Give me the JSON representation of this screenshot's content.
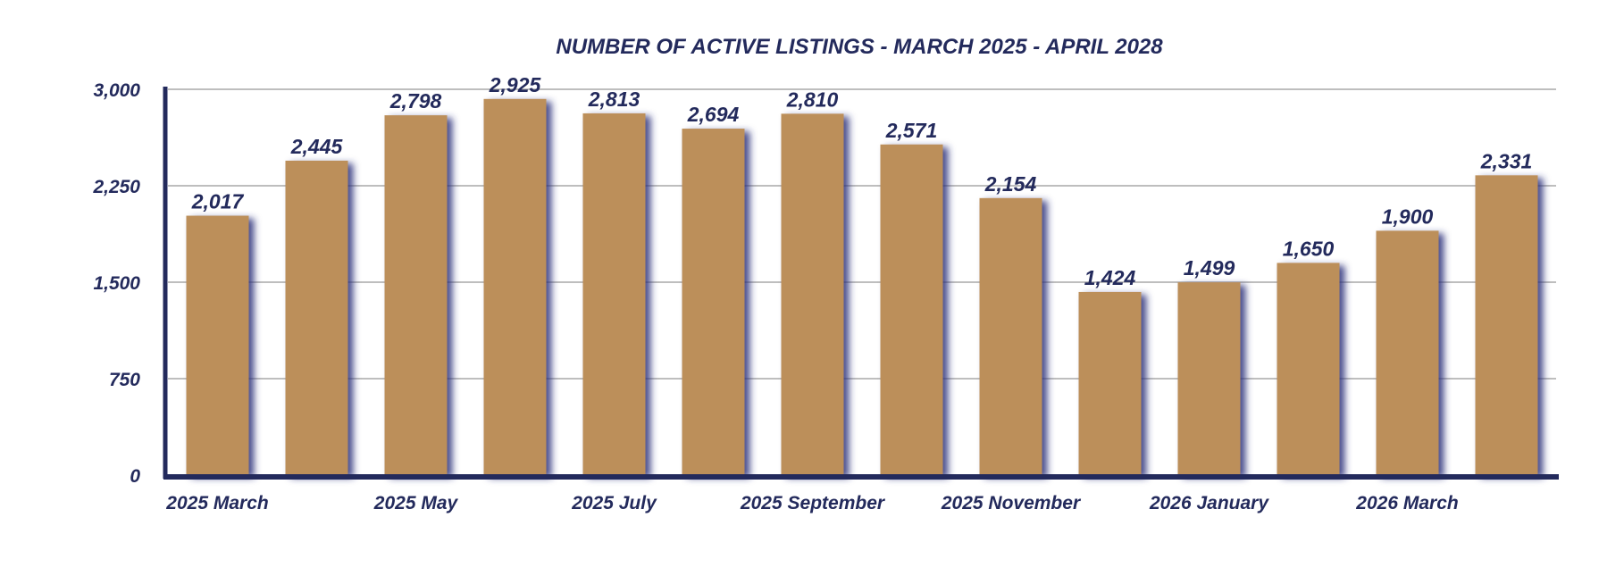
{
  "chart_data": {
    "type": "bar",
    "title": "NUMBER OF ACTIVE LISTINGS - MARCH 2025 - APRIL 2028",
    "xlabel": "",
    "ylabel": "",
    "categories": [
      "2025 March",
      "",
      "2025 May",
      "",
      "2025 July",
      "",
      "2025 September",
      "",
      "2025 November",
      "",
      "2026 January",
      "",
      "2026 March",
      ""
    ],
    "values": [
      2017,
      2445,
      2798,
      2925,
      2813,
      2694,
      2810,
      2571,
      2154,
      1424,
      1499,
      1650,
      1900,
      2331
    ],
    "value_labels": [
      "2,017",
      "2,445",
      "2,798",
      "2,925",
      "2,813",
      "2,694",
      "2,810",
      "2,571",
      "2,154",
      "1,424",
      "1,499",
      "1,650",
      "1,900",
      "2,331"
    ],
    "y_ticks": [
      0,
      750,
      1500,
      2250,
      3000
    ],
    "y_tick_labels": [
      "0",
      "750",
      "1,500",
      "2,250",
      "3,000"
    ],
    "ylim": [
      0,
      3000
    ],
    "grid": true,
    "legend": "none",
    "colors": {
      "bar": "#bc8f5a",
      "text": "#232a5c",
      "axis": "#232a5c",
      "grid": "#a8a8a8",
      "shadow": "#2a2f7a"
    }
  }
}
